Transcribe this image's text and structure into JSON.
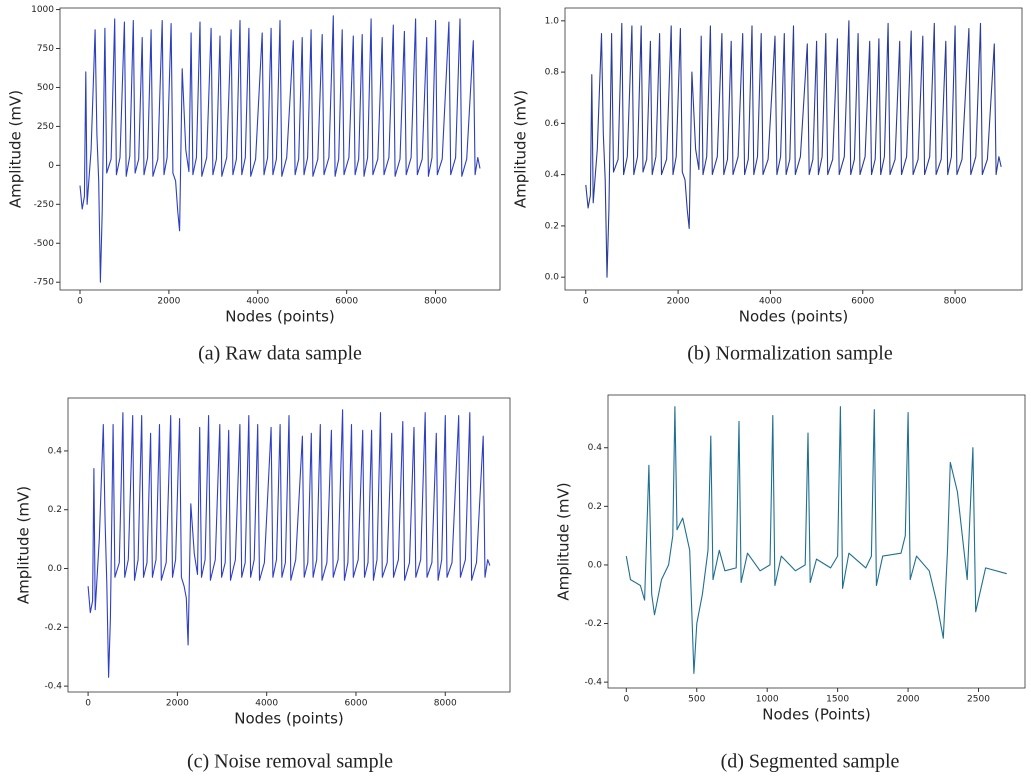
{
  "chart_data": [
    {
      "type": "line",
      "caption": "(a) Raw data sample",
      "xlabel": "Nodes (points)",
      "ylabel": "Amplitude (mV)",
      "color": "#2b3fbf",
      "xlim": [
        -450,
        9450
      ],
      "ylim": [
        -800,
        1010
      ],
      "xticks": [
        0,
        2000,
        4000,
        6000,
        8000
      ],
      "yticks": [
        -750,
        -500,
        -250,
        0,
        250,
        500,
        750,
        1000
      ],
      "x": [
        0,
        50,
        100,
        130,
        160,
        250,
        340,
        380,
        420,
        460,
        500,
        560,
        600,
        700,
        780,
        820,
        900,
        1000,
        1040,
        1120,
        1200,
        1240,
        1320,
        1400,
        1440,
        1520,
        1600,
        1640,
        1750,
        1850,
        1890,
        1960,
        2050,
        2090,
        2150,
        2200,
        2240,
        2300,
        2380,
        2450,
        2500,
        2540,
        2620,
        2700,
        2740,
        2850,
        2950,
        2990,
        3070,
        3150,
        3190,
        3300,
        3400,
        3440,
        3520,
        3600,
        3640,
        3720,
        3800,
        3840,
        3950,
        4100,
        4140,
        4220,
        4300,
        4340,
        4420,
        4500,
        4540,
        4650,
        4800,
        4840,
        4920,
        5000,
        5040,
        5120,
        5200,
        5240,
        5350,
        5450,
        5490,
        5600,
        5700,
        5740,
        5820,
        5900,
        5940,
        6050,
        6150,
        6190,
        6270,
        6350,
        6390,
        6470,
        6550,
        6590,
        6700,
        6800,
        6840,
        6950,
        7050,
        7090,
        7200,
        7300,
        7340,
        7450,
        7550,
        7590,
        7700,
        7800,
        7840,
        7920,
        8000,
        8040,
        8150,
        8300,
        8340,
        8450,
        8550,
        8590,
        8700,
        8850,
        8890,
        8950,
        9000
      ],
      "values": [
        -130,
        -280,
        -200,
        600,
        -250,
        100,
        870,
        200,
        -100,
        -750,
        -300,
        880,
        -50,
        40,
        940,
        -60,
        50,
        920,
        -70,
        60,
        930,
        -50,
        40,
        820,
        -60,
        50,
        870,
        -70,
        40,
        930,
        -60,
        50,
        910,
        -50,
        -100,
        -300,
        -420,
        620,
        100,
        -40,
        850,
        -60,
        50,
        920,
        -70,
        50,
        880,
        -60,
        40,
        830,
        -70,
        50,
        870,
        -60,
        40,
        930,
        -60,
        50,
        880,
        -70,
        40,
        850,
        -60,
        50,
        880,
        -60,
        40,
        930,
        -70,
        50,
        800,
        -60,
        40,
        820,
        -60,
        50,
        870,
        -70,
        40,
        840,
        -60,
        50,
        960,
        -70,
        40,
        870,
        -60,
        50,
        830,
        -60,
        40,
        840,
        -70,
        50,
        940,
        -60,
        40,
        820,
        -60,
        50,
        900,
        -70,
        40,
        860,
        -60,
        50,
        940,
        -60,
        40,
        820,
        -70,
        50,
        930,
        -60,
        40,
        920,
        -60,
        50,
        940,
        -70,
        40,
        800,
        -60,
        50,
        -20
      ]
    },
    {
      "type": "line",
      "caption": "(b) Normalization sample",
      "xlabel": "Nodes (points)",
      "ylabel": "Amplitude (mV)",
      "color": "#2a3b9a",
      "xlim": [
        -450,
        9450
      ],
      "ylim": [
        -0.05,
        1.05
      ],
      "xticks": [
        0,
        2000,
        4000,
        6000,
        8000
      ],
      "yticks": [
        {
          "value": 0,
          "label": "0.0"
        },
        0.2,
        0.4,
        0.6,
        0.8,
        {
          "value": 1,
          "label": "1.0"
        }
      ],
      "x": [
        0,
        50,
        100,
        130,
        160,
        250,
        340,
        380,
        420,
        460,
        500,
        560,
        600,
        700,
        780,
        820,
        900,
        1000,
        1040,
        1120,
        1200,
        1240,
        1320,
        1400,
        1440,
        1520,
        1600,
        1640,
        1750,
        1850,
        1890,
        1960,
        2050,
        2090,
        2150,
        2200,
        2240,
        2300,
        2380,
        2450,
        2500,
        2540,
        2620,
        2700,
        2740,
        2850,
        2950,
        2990,
        3070,
        3150,
        3190,
        3300,
        3400,
        3440,
        3520,
        3600,
        3640,
        3720,
        3800,
        3840,
        3950,
        4100,
        4140,
        4220,
        4300,
        4340,
        4420,
        4500,
        4540,
        4650,
        4800,
        4840,
        4920,
        5000,
        5040,
        5120,
        5200,
        5240,
        5350,
        5450,
        5490,
        5600,
        5700,
        5740,
        5820,
        5900,
        5940,
        6050,
        6150,
        6190,
        6270,
        6350,
        6390,
        6470,
        6550,
        6590,
        6700,
        6800,
        6840,
        6950,
        7050,
        7090,
        7200,
        7300,
        7340,
        7450,
        7550,
        7590,
        7700,
        7800,
        7840,
        7920,
        8000,
        8040,
        8150,
        8300,
        8340,
        8450,
        8550,
        8590,
        8700,
        8850,
        8890,
        8950,
        9000
      ],
      "values": [
        0.36,
        0.27,
        0.32,
        0.79,
        0.29,
        0.5,
        0.95,
        0.56,
        0.38,
        0.0,
        0.26,
        0.95,
        0.41,
        0.46,
        0.99,
        0.4,
        0.47,
        0.98,
        0.4,
        0.47,
        0.98,
        0.41,
        0.46,
        0.92,
        0.4,
        0.47,
        0.95,
        0.4,
        0.46,
        0.98,
        0.4,
        0.47,
        0.97,
        0.41,
        0.38,
        0.26,
        0.19,
        0.8,
        0.5,
        0.42,
        0.94,
        0.4,
        0.47,
        0.98,
        0.4,
        0.47,
        0.95,
        0.4,
        0.46,
        0.92,
        0.4,
        0.47,
        0.95,
        0.4,
        0.46,
        0.98,
        0.4,
        0.47,
        0.95,
        0.4,
        0.46,
        0.94,
        0.4,
        0.47,
        0.95,
        0.4,
        0.46,
        0.98,
        0.4,
        0.47,
        0.91,
        0.4,
        0.46,
        0.92,
        0.4,
        0.47,
        0.95,
        0.4,
        0.46,
        0.93,
        0.4,
        0.47,
        1.0,
        0.4,
        0.46,
        0.95,
        0.4,
        0.47,
        0.92,
        0.4,
        0.46,
        0.93,
        0.4,
        0.47,
        0.99,
        0.4,
        0.46,
        0.92,
        0.4,
        0.47,
        0.96,
        0.4,
        0.46,
        0.94,
        0.4,
        0.47,
        0.99,
        0.4,
        0.46,
        0.92,
        0.4,
        0.47,
        0.98,
        0.4,
        0.46,
        0.97,
        0.4,
        0.47,
        0.99,
        0.4,
        0.46,
        0.91,
        0.4,
        0.47,
        0.43
      ]
    },
    {
      "type": "line",
      "caption": "(c) Noise removal sample",
      "xlabel": "Nodes (points)",
      "ylabel": "Amplitude (mV)",
      "color": "#2f3fc4",
      "xlim": [
        -450,
        9450
      ],
      "ylim": [
        -0.42,
        0.58
      ],
      "xticks": [
        0,
        2000,
        4000,
        6000,
        8000
      ],
      "yticks": [
        -0.4,
        -0.2,
        {
          "value": 0,
          "label": "0.0"
        },
        0.2,
        0.4
      ],
      "x": [
        0,
        50,
        100,
        130,
        160,
        250,
        340,
        380,
        420,
        460,
        500,
        560,
        600,
        700,
        780,
        820,
        900,
        1000,
        1040,
        1120,
        1200,
        1240,
        1320,
        1400,
        1440,
        1520,
        1600,
        1640,
        1750,
        1850,
        1890,
        1960,
        2050,
        2090,
        2150,
        2200,
        2240,
        2300,
        2380,
        2450,
        2500,
        2540,
        2620,
        2700,
        2740,
        2850,
        2950,
        2990,
        3070,
        3150,
        3190,
        3300,
        3400,
        3440,
        3520,
        3600,
        3640,
        3720,
        3800,
        3840,
        3950,
        4100,
        4140,
        4220,
        4300,
        4340,
        4420,
        4500,
        4540,
        4650,
        4800,
        4840,
        4920,
        5000,
        5040,
        5120,
        5200,
        5240,
        5350,
        5450,
        5490,
        5600,
        5700,
        5740,
        5820,
        5900,
        5940,
        6050,
        6150,
        6190,
        6270,
        6350,
        6390,
        6470,
        6550,
        6590,
        6700,
        6800,
        6840,
        6950,
        7050,
        7090,
        7200,
        7300,
        7340,
        7450,
        7550,
        7590,
        7700,
        7800,
        7840,
        7920,
        8000,
        8040,
        8150,
        8300,
        8340,
        8450,
        8550,
        8590,
        8700,
        8850,
        8890,
        8950,
        9000
      ],
      "values": [
        -0.06,
        -0.15,
        -0.11,
        0.34,
        -0.14,
        0.1,
        0.49,
        0.16,
        -0.05,
        -0.37,
        -0.17,
        0.49,
        -0.03,
        0.02,
        0.53,
        -0.03,
        0.03,
        0.52,
        -0.04,
        0.03,
        0.52,
        -0.03,
        0.02,
        0.46,
        -0.03,
        0.03,
        0.49,
        -0.04,
        0.02,
        0.52,
        -0.03,
        0.03,
        0.51,
        -0.03,
        -0.06,
        -0.1,
        -0.26,
        0.22,
        0.05,
        -0.02,
        0.48,
        -0.03,
        0.03,
        0.52,
        -0.04,
        0.03,
        0.49,
        -0.03,
        0.02,
        0.47,
        -0.04,
        0.03,
        0.49,
        -0.03,
        0.02,
        0.52,
        -0.03,
        0.03,
        0.49,
        -0.04,
        0.02,
        0.48,
        -0.03,
        0.03,
        0.49,
        -0.03,
        0.02,
        0.52,
        -0.04,
        0.03,
        0.45,
        -0.03,
        0.02,
        0.46,
        -0.03,
        0.03,
        0.49,
        -0.04,
        0.02,
        0.47,
        -0.03,
        0.03,
        0.54,
        -0.04,
        0.02,
        0.49,
        -0.03,
        0.03,
        0.47,
        -0.03,
        0.02,
        0.47,
        -0.04,
        0.03,
        0.53,
        -0.03,
        0.02,
        0.46,
        -0.03,
        0.03,
        0.5,
        -0.04,
        0.02,
        0.48,
        -0.03,
        0.03,
        0.53,
        -0.03,
        0.02,
        0.46,
        -0.04,
        0.03,
        0.52,
        -0.03,
        0.02,
        0.52,
        -0.03,
        0.03,
        0.53,
        -0.04,
        0.02,
        0.45,
        -0.03,
        0.03,
        0.01
      ]
    },
    {
      "type": "line",
      "caption": "(d) Segmented sample",
      "xlabel": "Nodes (Points)",
      "ylabel": "Amplitude (mV)",
      "color": "#1f6f91",
      "xlim": [
        -130,
        2830
      ],
      "ylim": [
        -0.42,
        0.58
      ],
      "xticks": [
        0,
        500,
        1000,
        1500,
        2000,
        2500
      ],
      "yticks": [
        -0.4,
        -0.2,
        {
          "value": 0,
          "label": "0.0"
        },
        0.2,
        0.4
      ],
      "x": [
        0,
        30,
        100,
        130,
        160,
        180,
        200,
        250,
        300,
        330,
        345,
        360,
        400,
        450,
        480,
        500,
        540,
        580,
        600,
        615,
        660,
        700,
        780,
        800,
        815,
        860,
        950,
        1020,
        1040,
        1055,
        1100,
        1200,
        1270,
        1290,
        1305,
        1350,
        1450,
        1500,
        1520,
        1535,
        1580,
        1700,
        1740,
        1760,
        1775,
        1820,
        1950,
        1980,
        2000,
        2015,
        2060,
        2150,
        2200,
        2250,
        2280,
        2300,
        2350,
        2420,
        2460,
        2480,
        2550,
        2700
      ],
      "values": [
        0.03,
        -0.05,
        -0.07,
        -0.12,
        0.34,
        -0.1,
        -0.17,
        -0.05,
        0.0,
        0.1,
        0.54,
        0.12,
        0.16,
        0.05,
        -0.37,
        -0.2,
        -0.1,
        0.05,
        0.44,
        -0.05,
        0.05,
        -0.02,
        -0.01,
        0.49,
        -0.06,
        0.04,
        -0.02,
        0.0,
        0.51,
        -0.07,
        0.03,
        -0.02,
        0.0,
        0.45,
        -0.06,
        0.02,
        -0.01,
        0.03,
        0.54,
        -0.08,
        0.04,
        -0.01,
        0.03,
        0.53,
        -0.07,
        0.03,
        0.04,
        0.1,
        0.52,
        -0.05,
        0.03,
        -0.02,
        -0.12,
        -0.25,
        0.05,
        0.35,
        0.25,
        -0.05,
        0.4,
        -0.16,
        -0.01,
        -0.03
      ]
    }
  ]
}
